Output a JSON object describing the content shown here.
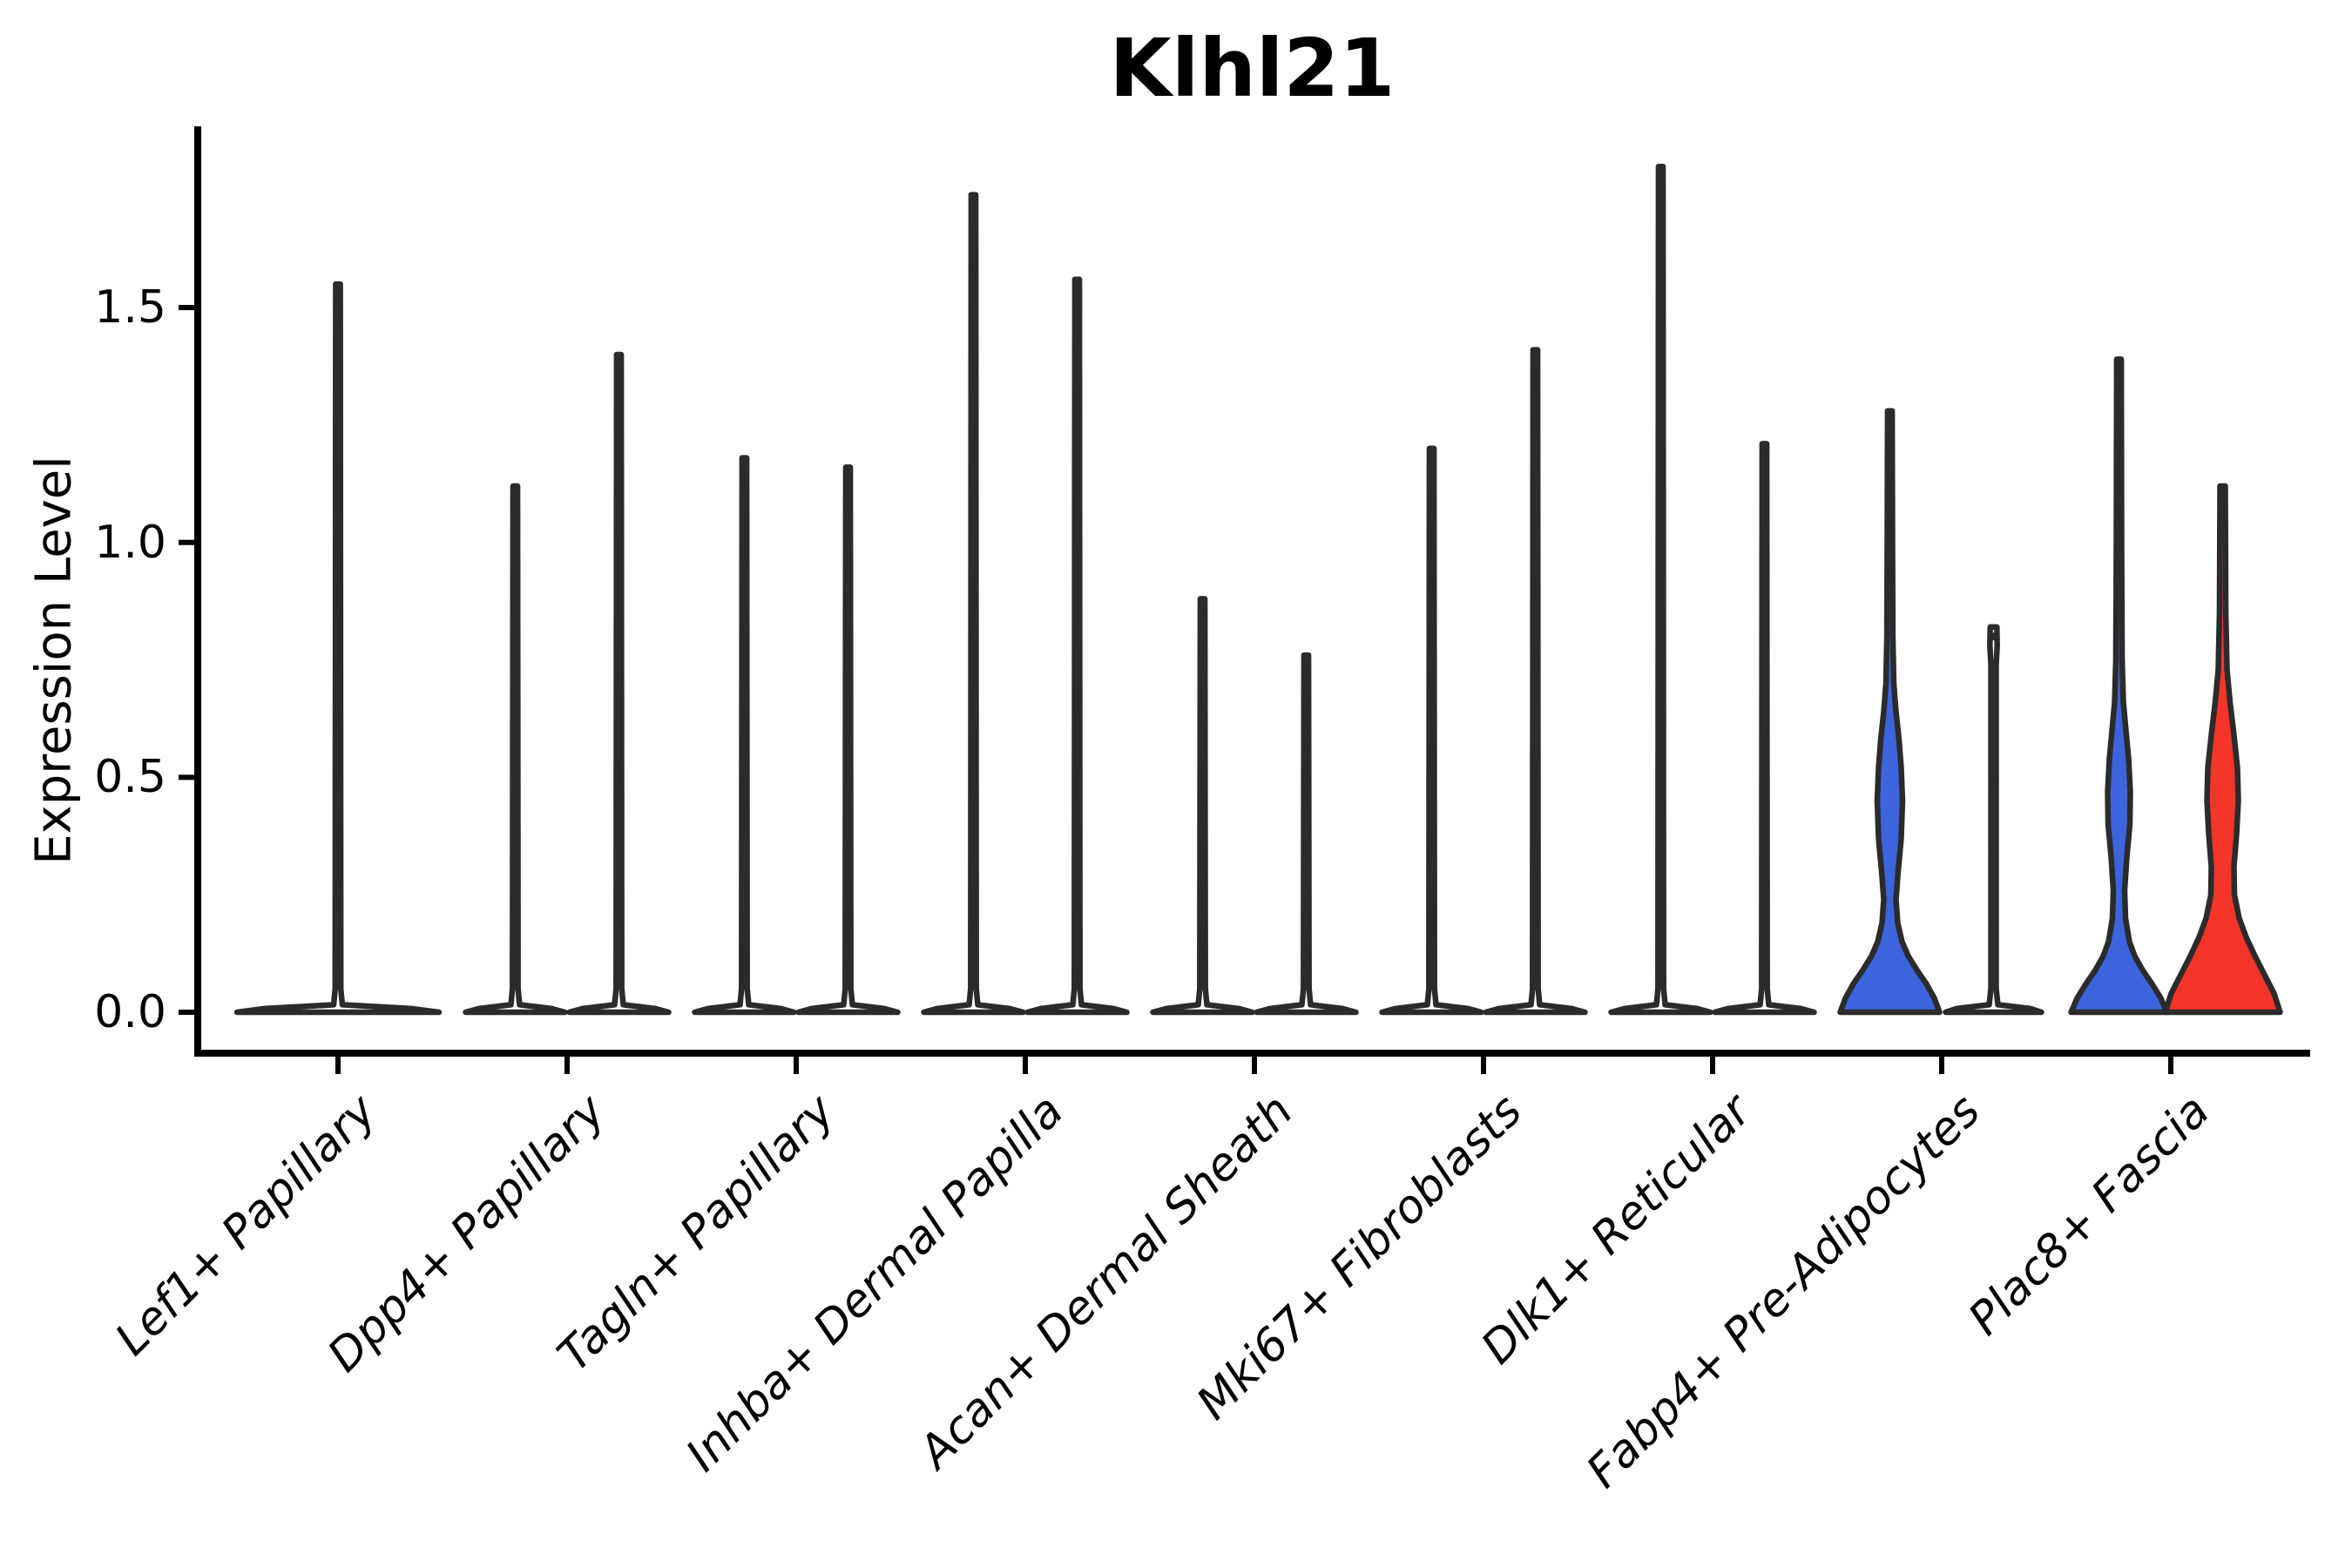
{
  "figure": {
    "title": "Klhl21"
  },
  "chart_data": {
    "type": "violin",
    "title": "Klhl21",
    "xlabel": "",
    "ylabel": "Expression Level",
    "yticks": [
      0.0,
      0.5,
      1.0,
      1.5
    ],
    "ytick_labels": [
      "0.0",
      "0.5",
      "1.0",
      "1.5"
    ],
    "ylim": [
      -0.09,
      1.88
    ],
    "grid": false,
    "legend": "none",
    "colors": {
      "blue_fill": "#3c64dd",
      "red_fill": "#f5352a",
      "plain_fill": "#ffffff",
      "outline": "#2b2b2b",
      "axis": "#000000"
    },
    "categories": [
      {
        "label": "Lef1+ Papillary",
        "violins": [
          {
            "side": "center",
            "kind": "collapsed",
            "halfwidth": 116,
            "max": 1.55,
            "fill": "plain"
          }
        ]
      },
      {
        "label": "Dpp4+ Papillary",
        "violins": [
          {
            "side": "left",
            "kind": "collapsed",
            "halfwidth": 57,
            "max": 1.12,
            "fill": "plain"
          },
          {
            "side": "right",
            "kind": "collapsed",
            "halfwidth": 57,
            "max": 1.4,
            "fill": "plain"
          }
        ]
      },
      {
        "label": "Tagln+ Papillary",
        "violins": [
          {
            "side": "left",
            "kind": "collapsed",
            "halfwidth": 57,
            "max": 1.18,
            "fill": "plain"
          },
          {
            "side": "right",
            "kind": "collapsed",
            "halfwidth": 57,
            "max": 1.16,
            "fill": "plain"
          }
        ]
      },
      {
        "label": "Inhba+ Dermal Papilla",
        "violins": [
          {
            "side": "left",
            "kind": "collapsed",
            "halfwidth": 57,
            "max": 1.74,
            "fill": "plain"
          },
          {
            "side": "right",
            "kind": "collapsed",
            "halfwidth": 57,
            "max": 1.56,
            "fill": "plain"
          }
        ]
      },
      {
        "label": "Acan+ Dermal Sheath",
        "violins": [
          {
            "side": "left",
            "kind": "collapsed",
            "halfwidth": 57,
            "max": 0.88,
            "fill": "plain"
          },
          {
            "side": "right",
            "kind": "collapsed",
            "halfwidth": 57,
            "max": 0.76,
            "fill": "plain"
          }
        ]
      },
      {
        "label": "Mki67+ Fibroblasts",
        "violins": [
          {
            "side": "left",
            "kind": "collapsed",
            "halfwidth": 57,
            "max": 1.2,
            "fill": "plain"
          },
          {
            "side": "right",
            "kind": "collapsed",
            "halfwidth": 57,
            "max": 1.41,
            "fill": "plain"
          }
        ]
      },
      {
        "label": "Dlk1+ Reticular",
        "violins": [
          {
            "side": "left",
            "kind": "collapsed",
            "halfwidth": 57,
            "max": 1.8,
            "fill": "plain"
          },
          {
            "side": "right",
            "kind": "collapsed",
            "halfwidth": 57,
            "max": 1.21,
            "fill": "plain"
          }
        ]
      },
      {
        "label": "Fabp4+ Pre-Adipocytes",
        "violins": [
          {
            "side": "left",
            "kind": "shaped",
            "max": 1.28,
            "fill": "blue",
            "profile": [
              [
                0,
                57
              ],
              [
                0.03,
                51
              ],
              [
                0.06,
                42
              ],
              [
                0.09,
                31
              ],
              [
                0.12,
                21
              ],
              [
                0.15,
                14
              ],
              [
                0.19,
                9
              ],
              [
                0.24,
                7
              ],
              [
                0.3,
                9.5
              ],
              [
                0.37,
                13
              ],
              [
                0.45,
                14.5
              ],
              [
                0.52,
                13
              ],
              [
                0.58,
                10.5
              ],
              [
                0.64,
                7
              ],
              [
                0.7,
                4.5
              ],
              [
                0.8,
                3.4
              ],
              [
                1.0,
                3
              ],
              [
                1.28,
                2.6
              ]
            ]
          },
          {
            "side": "right",
            "kind": "shaped",
            "max": 0.82,
            "fill": "plain",
            "profile": [
              [
                0,
                55
              ],
              [
                0.008,
                42
              ],
              [
                0.016,
                5
              ],
              [
                0.05,
                3
              ],
              [
                0.74,
                3
              ],
              [
                0.78,
                4.2
              ],
              [
                0.82,
                3.8
              ]
            ],
            "dots": [
              0.8,
              0.5,
              0.48,
              0.41,
              0.34,
              0.28,
              0.19
            ]
          }
        ]
      },
      {
        "label": "Plac8+ Fascia",
        "violins": [
          {
            "side": "left",
            "kind": "shaped",
            "max": 1.39,
            "fill": "blue",
            "profile": [
              [
                0,
                55
              ],
              [
                0.03,
                48
              ],
              [
                0.06,
                38
              ],
              [
                0.09,
                27
              ],
              [
                0.12,
                18
              ],
              [
                0.15,
                12
              ],
              [
                0.2,
                7.5
              ],
              [
                0.26,
                6.5
              ],
              [
                0.33,
                9
              ],
              [
                0.4,
                12.5
              ],
              [
                0.47,
                13
              ],
              [
                0.54,
                11
              ],
              [
                0.6,
                8
              ],
              [
                0.66,
                5
              ],
              [
                0.75,
                3.6
              ],
              [
                1.0,
                3
              ],
              [
                1.39,
                2.6
              ]
            ]
          },
          {
            "side": "right",
            "kind": "shaped",
            "max": 1.12,
            "fill": "red",
            "profile": [
              [
                0,
                66
              ],
              [
                0.04,
                59
              ],
              [
                0.08,
                48
              ],
              [
                0.12,
                37
              ],
              [
                0.16,
                27
              ],
              [
                0.2,
                19
              ],
              [
                0.25,
                13.5
              ],
              [
                0.31,
                13
              ],
              [
                0.38,
                16
              ],
              [
                0.45,
                18
              ],
              [
                0.52,
                17
              ],
              [
                0.59,
                13
              ],
              [
                0.66,
                8.5
              ],
              [
                0.73,
                5
              ],
              [
                0.85,
                3.6
              ],
              [
                1.12,
                3
              ]
            ]
          }
        ]
      }
    ]
  }
}
